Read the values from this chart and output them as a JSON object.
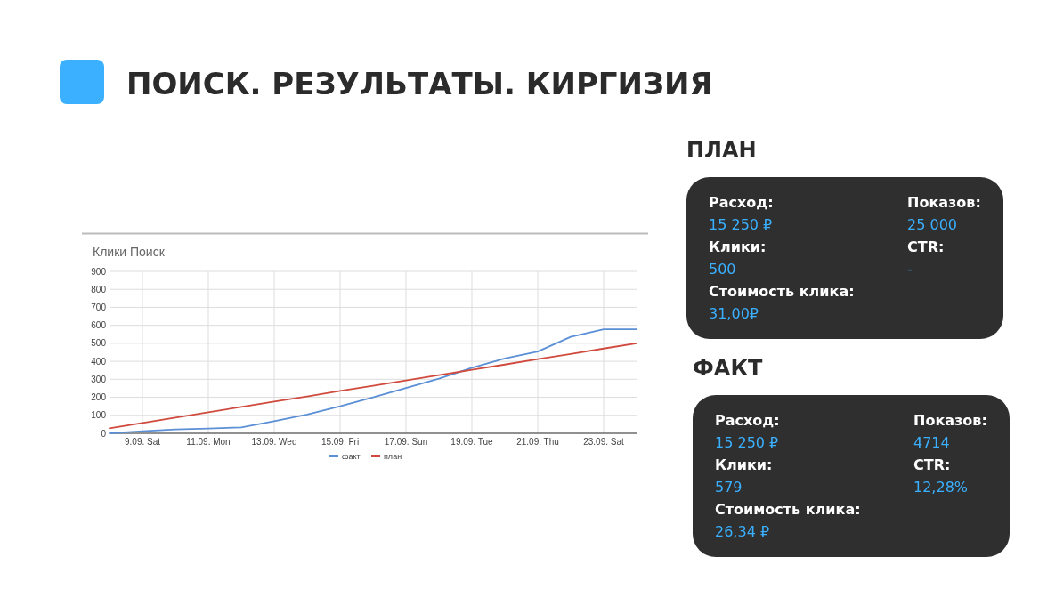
{
  "chart_data": [
    {
      "type": "other",
      "title": "ПОИСК. РЕЗУЛЬТАТЫ. КИРГИЗИЯ"
    },
    {
      "type": "line",
      "title": "Клики Поиск",
      "categories": [
        null,
        "9.09. Sat",
        null,
        "11.09. Mon",
        null,
        "13.09. Wed",
        null,
        "15.09. Fri",
        null,
        "17.09. Sun",
        null,
        "19.09. Tue",
        null,
        "21.09. Thu",
        null,
        "23.09. Sat",
        null
      ],
      "series": [
        {
          "name": "факт",
          "color": "#5b8fd6",
          "values": [
            0,
            12,
            22,
            27,
            33,
            67,
            105,
            150,
            200,
            252,
            303,
            364,
            416,
            454,
            536,
            578,
            578
          ]
        },
        {
          "name": "план",
          "color": "#d04a3e",
          "values": [
            28,
            58,
            87,
            117,
            146,
            176,
            205,
            235,
            264,
            294,
            323,
            353,
            382,
            412,
            441,
            471,
            500
          ]
        }
      ],
      "ylim": [
        0,
        900
      ],
      "yticks": [
        0,
        100,
        200,
        300,
        400,
        500,
        600,
        700,
        800,
        900
      ],
      "grid": true,
      "legend": "bottom",
      "marker": "none",
      "line_style": "solid"
    },
    {
      "type": "other",
      "title": "ПЛАН",
      "annotations": [
        "Расход:",
        "15 250 ₽",
        "Клики:",
        "500",
        "Стоимость клика:",
        "31,00₽",
        "Показов:",
        "25 000",
        "CTR:",
        "-"
      ]
    },
    {
      "type": "other",
      "title": "ФАКТ",
      "annotations": [
        "Расход:",
        "15 250 ₽",
        "Клики:",
        "579",
        "Стоимость клика:",
        "26,34 ₽",
        "Показов:",
        "4714",
        "CTR:",
        "12,28%"
      ]
    }
  ]
}
